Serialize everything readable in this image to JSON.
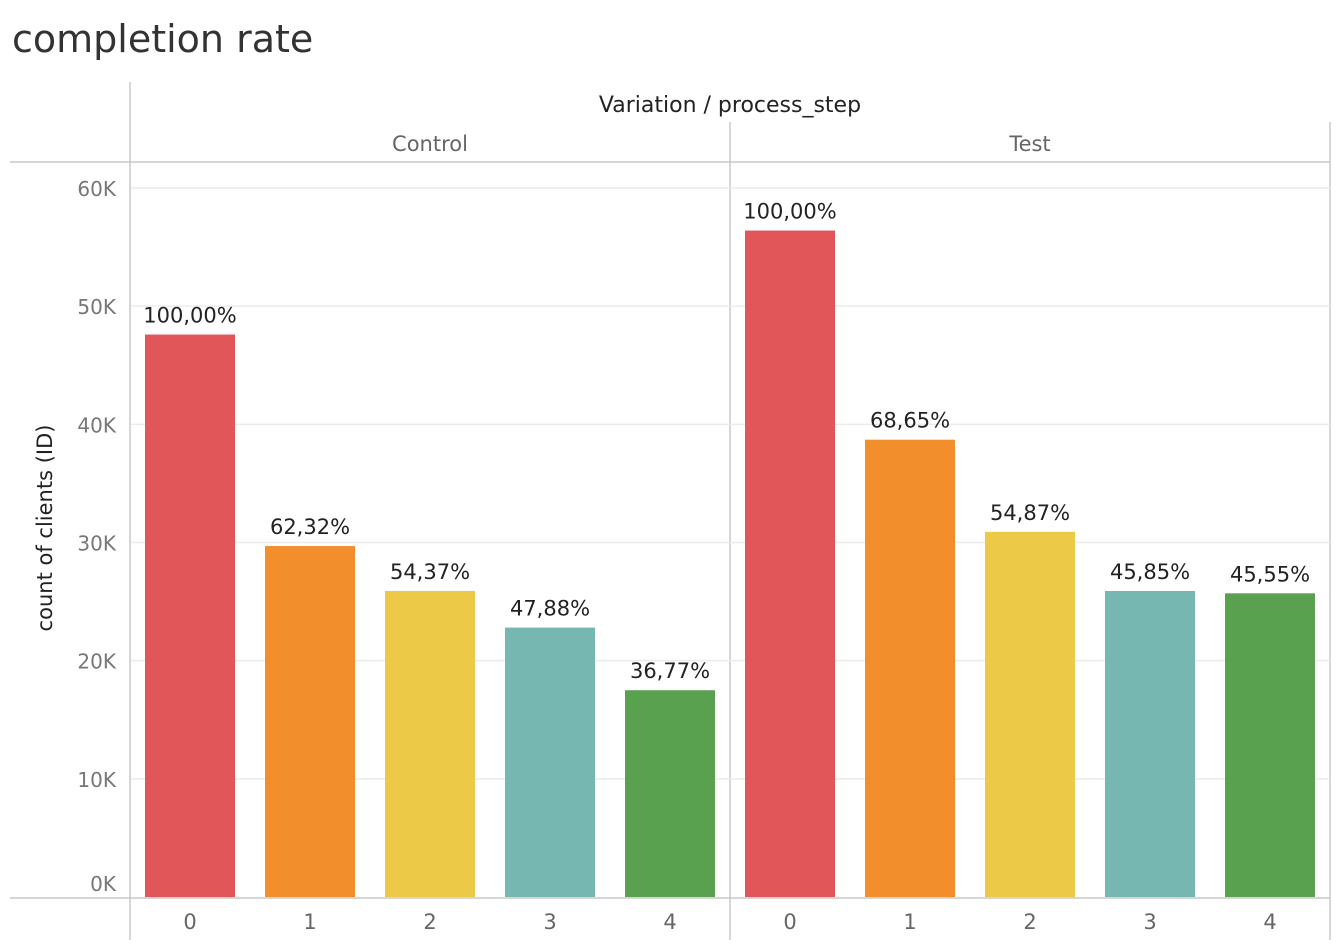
{
  "chart_data": {
    "type": "bar",
    "title": "completion rate",
    "facet_header": "Variation / process_step",
    "ylabel": "count of clients (ID)",
    "xlabel": "",
    "ylim": [
      0,
      60000
    ],
    "y_ticks": [
      0,
      10000,
      20000,
      30000,
      40000,
      50000,
      60000
    ],
    "y_tick_labels": [
      "0K",
      "10K",
      "20K",
      "30K",
      "40K",
      "50K",
      "60K"
    ],
    "grid": true,
    "categories": [
      "0",
      "1",
      "2",
      "3",
      "4"
    ],
    "colors": [
      "#e15759",
      "#f28e2b",
      "#edc948",
      "#76b7b2",
      "#59a14f"
    ],
    "panels": [
      {
        "name": "Control",
        "values": [
          47600,
          29700,
          25900,
          22800,
          17500
        ],
        "labels": [
          "100,00%",
          "62,32%",
          "54,37%",
          "47,88%",
          "36,77%"
        ]
      },
      {
        "name": "Test",
        "values": [
          56400,
          38700,
          30900,
          25900,
          25700
        ],
        "labels": [
          "100,00%",
          "68,65%",
          "54,87%",
          "45,85%",
          "45,55%"
        ]
      }
    ]
  }
}
